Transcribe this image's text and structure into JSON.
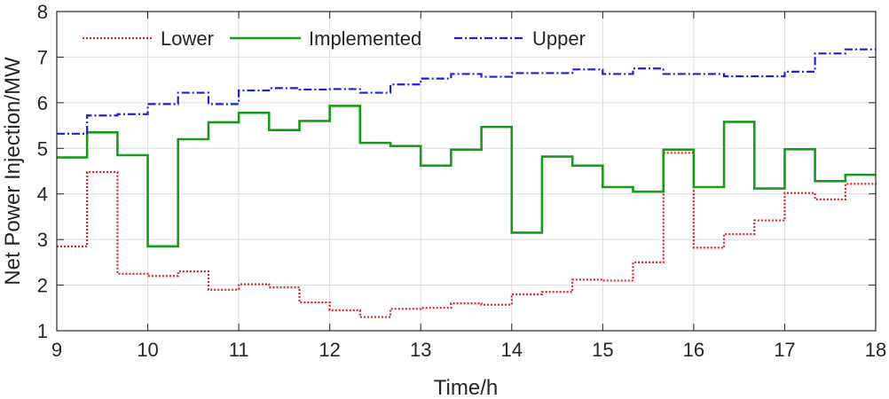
{
  "chart_data": {
    "type": "line",
    "step": true,
    "xlabel": "Time/h",
    "ylabel": "Net Power Injection/MW",
    "xlim": [
      9,
      18
    ],
    "ylim": [
      1,
      8
    ],
    "xticks": [
      9,
      10,
      11,
      12,
      13,
      14,
      15,
      16,
      17,
      18
    ],
    "yticks": [
      1,
      2,
      3,
      4,
      5,
      6,
      7,
      8
    ],
    "grid": true,
    "legend_position": "top-left",
    "x": [
      9,
      9.333,
      9.667,
      10,
      10.333,
      10.667,
      11,
      11.333,
      11.667,
      12,
      12.333,
      12.667,
      13,
      13.333,
      13.667,
      14,
      14.333,
      14.667,
      15,
      15.333,
      15.667,
      16,
      16.333,
      16.667,
      17,
      17.333,
      17.667,
      18
    ],
    "series": [
      {
        "name": "Lower",
        "color": "#d62728",
        "dash": "dotted",
        "values": [
          2.85,
          4.48,
          2.25,
          2.2,
          2.3,
          1.9,
          2.02,
          1.95,
          1.62,
          1.45,
          1.3,
          1.48,
          1.5,
          1.6,
          1.57,
          1.8,
          1.85,
          2.12,
          2.1,
          2.5,
          4.9,
          2.82,
          3.12,
          3.42,
          4.02,
          3.88,
          4.22,
          4.2
        ]
      },
      {
        "name": "Implemented",
        "color": "#1a9a1a",
        "dash": "solid",
        "values": [
          4.8,
          5.35,
          4.85,
          2.85,
          5.2,
          5.57,
          5.78,
          5.4,
          5.6,
          5.93,
          5.12,
          5.05,
          4.62,
          4.97,
          5.47,
          3.15,
          4.82,
          4.62,
          4.15,
          4.05,
          4.97,
          4.15,
          5.58,
          4.12,
          4.98,
          4.28,
          4.42,
          4.42
        ]
      },
      {
        "name": "Upper",
        "color": "#1f1fd6",
        "dash": "dashdot",
        "values": [
          5.32,
          5.72,
          5.75,
          5.97,
          6.22,
          5.97,
          6.27,
          6.32,
          6.29,
          6.3,
          6.22,
          6.4,
          6.53,
          6.63,
          6.57,
          6.65,
          6.65,
          6.73,
          6.63,
          6.75,
          6.63,
          6.63,
          6.58,
          6.58,
          6.68,
          7.08,
          7.17,
          7.17
        ]
      }
    ]
  }
}
